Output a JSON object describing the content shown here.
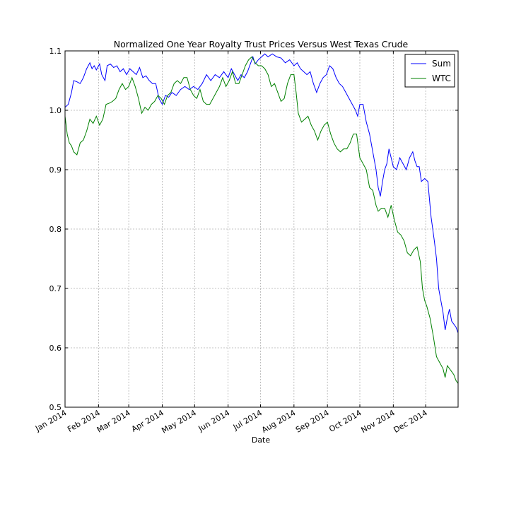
{
  "chart_data": {
    "type": "line",
    "title": "Normalized One Year Royalty Trust Prices Versus West Texas Crude",
    "xlabel": "Date",
    "ylabel": "",
    "x_range": [
      "2014-01-01",
      "2014-12-31"
    ],
    "x_ticks": [
      {
        "date": "2014-01-01",
        "label": "Jan 2014"
      },
      {
        "date": "2014-02-01",
        "label": "Feb 2014"
      },
      {
        "date": "2014-03-01",
        "label": "Mar 2014"
      },
      {
        "date": "2014-04-01",
        "label": "Apr 2014"
      },
      {
        "date": "2014-05-01",
        "label": "May 2014"
      },
      {
        "date": "2014-06-01",
        "label": "Jun 2014"
      },
      {
        "date": "2014-07-01",
        "label": "Jul 2014"
      },
      {
        "date": "2014-08-01",
        "label": "Aug 2014"
      },
      {
        "date": "2014-09-01",
        "label": "Sep 2014"
      },
      {
        "date": "2014-10-01",
        "label": "Oct 2014"
      },
      {
        "date": "2014-11-01",
        "label": "Nov 2014"
      },
      {
        "date": "2014-12-01",
        "label": "Dec 2014"
      }
    ],
    "ylim": [
      0.5,
      1.1
    ],
    "y_ticks": [
      {
        "value": 0.5,
        "label": "0.5"
      },
      {
        "value": 0.6,
        "label": "0.6"
      },
      {
        "value": 0.7,
        "label": "0.7"
      },
      {
        "value": 0.8,
        "label": "0.8"
      },
      {
        "value": 0.9,
        "label": "0.9"
      },
      {
        "value": 1.0,
        "label": "1.0"
      },
      {
        "value": 1.1,
        "label": "1.1"
      }
    ],
    "grid": true,
    "legend_position": "top-right",
    "series": [
      {
        "name": "Sum",
        "color": "#0000ff",
        "points": [
          [
            "2014-01-01",
            1.005
          ],
          [
            "2014-01-04",
            1.01
          ],
          [
            "2014-01-07",
            1.03
          ],
          [
            "2014-01-09",
            1.05
          ],
          [
            "2014-01-12",
            1.048
          ],
          [
            "2014-01-15",
            1.045
          ],
          [
            "2014-01-18",
            1.055
          ],
          [
            "2014-01-21",
            1.07
          ],
          [
            "2014-01-24",
            1.08
          ],
          [
            "2014-01-26",
            1.07
          ],
          [
            "2014-01-28",
            1.075
          ],
          [
            "2014-01-30",
            1.068
          ],
          [
            "2014-02-02",
            1.078
          ],
          [
            "2014-02-04",
            1.06
          ],
          [
            "2014-02-07",
            1.05
          ],
          [
            "2014-02-09",
            1.075
          ],
          [
            "2014-02-12",
            1.078
          ],
          [
            "2014-02-15",
            1.072
          ],
          [
            "2014-02-18",
            1.075
          ],
          [
            "2014-02-21",
            1.065
          ],
          [
            "2014-02-24",
            1.07
          ],
          [
            "2014-02-27",
            1.06
          ],
          [
            "2014-03-02",
            1.07
          ],
          [
            "2014-03-05",
            1.065
          ],
          [
            "2014-03-08",
            1.06
          ],
          [
            "2014-03-11",
            1.072
          ],
          [
            "2014-03-14",
            1.055
          ],
          [
            "2014-03-17",
            1.058
          ],
          [
            "2014-03-20",
            1.05
          ],
          [
            "2014-03-23",
            1.045
          ],
          [
            "2014-03-26",
            1.045
          ],
          [
            "2014-03-29",
            1.02
          ],
          [
            "2014-04-01",
            1.01
          ],
          [
            "2014-04-04",
            1.025
          ],
          [
            "2014-04-07",
            1.022
          ],
          [
            "2014-04-10",
            1.03
          ],
          [
            "2014-04-14",
            1.025
          ],
          [
            "2014-04-18",
            1.035
          ],
          [
            "2014-04-22",
            1.04
          ],
          [
            "2014-04-26",
            1.035
          ],
          [
            "2014-04-30",
            1.04
          ],
          [
            "2014-05-04",
            1.035
          ],
          [
            "2014-05-08",
            1.045
          ],
          [
            "2014-05-12",
            1.06
          ],
          [
            "2014-05-16",
            1.05
          ],
          [
            "2014-05-20",
            1.06
          ],
          [
            "2014-05-24",
            1.055
          ],
          [
            "2014-05-28",
            1.065
          ],
          [
            "2014-06-01",
            1.055
          ],
          [
            "2014-06-04",
            1.07
          ],
          [
            "2014-06-07",
            1.06
          ],
          [
            "2014-06-10",
            1.05
          ],
          [
            "2014-06-13",
            1.06
          ],
          [
            "2014-06-16",
            1.055
          ],
          [
            "2014-06-19",
            1.065
          ],
          [
            "2014-06-22",
            1.08
          ],
          [
            "2014-06-24",
            1.09
          ],
          [
            "2014-06-26",
            1.078
          ],
          [
            "2014-06-29",
            1.085
          ],
          [
            "2014-07-02",
            1.09
          ],
          [
            "2014-07-05",
            1.095
          ],
          [
            "2014-07-08",
            1.09
          ],
          [
            "2014-07-12",
            1.095
          ],
          [
            "2014-07-16",
            1.09
          ],
          [
            "2014-07-20",
            1.088
          ],
          [
            "2014-07-24",
            1.08
          ],
          [
            "2014-07-28",
            1.085
          ],
          [
            "2014-08-01",
            1.075
          ],
          [
            "2014-08-04",
            1.08
          ],
          [
            "2014-08-07",
            1.07
          ],
          [
            "2014-08-10",
            1.065
          ],
          [
            "2014-08-13",
            1.06
          ],
          [
            "2014-08-16",
            1.065
          ],
          [
            "2014-08-19",
            1.045
          ],
          [
            "2014-08-22",
            1.03
          ],
          [
            "2014-08-25",
            1.045
          ],
          [
            "2014-08-28",
            1.055
          ],
          [
            "2014-08-31",
            1.06
          ],
          [
            "2014-09-03",
            1.075
          ],
          [
            "2014-09-06",
            1.07
          ],
          [
            "2014-09-09",
            1.055
          ],
          [
            "2014-09-12",
            1.045
          ],
          [
            "2014-09-15",
            1.04
          ],
          [
            "2014-09-18",
            1.03
          ],
          [
            "2014-09-21",
            1.02
          ],
          [
            "2014-09-24",
            1.01
          ],
          [
            "2014-09-27",
            1.0
          ],
          [
            "2014-09-29",
            0.99
          ],
          [
            "2014-10-01",
            1.01
          ],
          [
            "2014-10-04",
            1.01
          ],
          [
            "2014-10-07",
            0.98
          ],
          [
            "2014-10-10",
            0.96
          ],
          [
            "2014-10-13",
            0.93
          ],
          [
            "2014-10-16",
            0.9
          ],
          [
            "2014-10-18",
            0.87
          ],
          [
            "2014-10-20",
            0.855
          ],
          [
            "2014-10-22",
            0.88
          ],
          [
            "2014-10-24",
            0.9
          ],
          [
            "2014-10-26",
            0.91
          ],
          [
            "2014-10-28",
            0.935
          ],
          [
            "2014-10-30",
            0.92
          ],
          [
            "2014-11-01",
            0.905
          ],
          [
            "2014-11-04",
            0.9
          ],
          [
            "2014-11-07",
            0.92
          ],
          [
            "2014-11-10",
            0.91
          ],
          [
            "2014-11-13",
            0.9
          ],
          [
            "2014-11-16",
            0.92
          ],
          [
            "2014-11-19",
            0.93
          ],
          [
            "2014-11-21",
            0.915
          ],
          [
            "2014-11-23",
            0.905
          ],
          [
            "2014-11-25",
            0.905
          ],
          [
            "2014-11-27",
            0.88
          ],
          [
            "2014-11-30",
            0.885
          ],
          [
            "2014-12-03",
            0.88
          ],
          [
            "2014-12-06",
            0.82
          ],
          [
            "2014-12-09",
            0.78
          ],
          [
            "2014-12-11",
            0.75
          ],
          [
            "2014-12-13",
            0.7
          ],
          [
            "2014-12-15",
            0.68
          ],
          [
            "2014-12-17",
            0.66
          ],
          [
            "2014-12-19",
            0.63
          ],
          [
            "2014-12-21",
            0.65
          ],
          [
            "2014-12-23",
            0.665
          ],
          [
            "2014-12-25",
            0.645
          ],
          [
            "2014-12-27",
            0.64
          ],
          [
            "2014-12-29",
            0.635
          ],
          [
            "2014-12-31",
            0.625
          ]
        ]
      },
      {
        "name": "WTC",
        "color": "#008000",
        "points": [
          [
            "2014-01-01",
            0.99
          ],
          [
            "2014-01-03",
            0.96
          ],
          [
            "2014-01-05",
            0.945
          ],
          [
            "2014-01-07",
            0.94
          ],
          [
            "2014-01-09",
            0.93
          ],
          [
            "2014-01-12",
            0.925
          ],
          [
            "2014-01-15",
            0.945
          ],
          [
            "2014-01-18",
            0.95
          ],
          [
            "2014-01-21",
            0.965
          ],
          [
            "2014-01-24",
            0.985
          ],
          [
            "2014-01-27",
            0.978
          ],
          [
            "2014-01-30",
            0.99
          ],
          [
            "2014-02-02",
            0.975
          ],
          [
            "2014-02-05",
            0.985
          ],
          [
            "2014-02-08",
            1.01
          ],
          [
            "2014-02-11",
            1.012
          ],
          [
            "2014-02-14",
            1.015
          ],
          [
            "2014-02-17",
            1.02
          ],
          [
            "2014-02-20",
            1.035
          ],
          [
            "2014-02-23",
            1.045
          ],
          [
            "2014-02-26",
            1.035
          ],
          [
            "2014-03-01",
            1.04
          ],
          [
            "2014-03-04",
            1.055
          ],
          [
            "2014-03-07",
            1.04
          ],
          [
            "2014-03-10",
            1.02
          ],
          [
            "2014-03-13",
            0.995
          ],
          [
            "2014-03-16",
            1.005
          ],
          [
            "2014-03-19",
            1.0
          ],
          [
            "2014-03-22",
            1.01
          ],
          [
            "2014-03-25",
            1.015
          ],
          [
            "2014-03-28",
            1.025
          ],
          [
            "2014-03-31",
            1.02
          ],
          [
            "2014-04-03",
            1.01
          ],
          [
            "2014-04-06",
            1.025
          ],
          [
            "2014-04-09",
            1.03
          ],
          [
            "2014-04-12",
            1.045
          ],
          [
            "2014-04-15",
            1.05
          ],
          [
            "2014-04-18",
            1.045
          ],
          [
            "2014-04-21",
            1.055
          ],
          [
            "2014-04-24",
            1.055
          ],
          [
            "2014-04-27",
            1.035
          ],
          [
            "2014-04-30",
            1.025
          ],
          [
            "2014-05-03",
            1.02
          ],
          [
            "2014-05-06",
            1.035
          ],
          [
            "2014-05-09",
            1.015
          ],
          [
            "2014-05-12",
            1.01
          ],
          [
            "2014-05-15",
            1.01
          ],
          [
            "2014-05-18",
            1.02
          ],
          [
            "2014-05-21",
            1.03
          ],
          [
            "2014-05-24",
            1.04
          ],
          [
            "2014-05-27",
            1.055
          ],
          [
            "2014-05-30",
            1.04
          ],
          [
            "2014-06-02",
            1.05
          ],
          [
            "2014-06-05",
            1.065
          ],
          [
            "2014-06-08",
            1.045
          ],
          [
            "2014-06-11",
            1.045
          ],
          [
            "2014-06-14",
            1.06
          ],
          [
            "2014-06-17",
            1.075
          ],
          [
            "2014-06-20",
            1.085
          ],
          [
            "2014-06-23",
            1.09
          ],
          [
            "2014-06-26",
            1.08
          ],
          [
            "2014-06-29",
            1.075
          ],
          [
            "2014-07-02",
            1.075
          ],
          [
            "2014-07-05",
            1.07
          ],
          [
            "2014-07-08",
            1.06
          ],
          [
            "2014-07-11",
            1.04
          ],
          [
            "2014-07-14",
            1.045
          ],
          [
            "2014-07-17",
            1.03
          ],
          [
            "2014-07-20",
            1.015
          ],
          [
            "2014-07-23",
            1.02
          ],
          [
            "2014-07-26",
            1.045
          ],
          [
            "2014-07-29",
            1.06
          ],
          [
            "2014-08-01",
            1.06
          ],
          [
            "2014-08-03",
            1.03
          ],
          [
            "2014-08-05",
            0.995
          ],
          [
            "2014-08-08",
            0.98
          ],
          [
            "2014-08-11",
            0.985
          ],
          [
            "2014-08-14",
            0.99
          ],
          [
            "2014-08-17",
            0.975
          ],
          [
            "2014-08-20",
            0.965
          ],
          [
            "2014-08-23",
            0.95
          ],
          [
            "2014-08-26",
            0.965
          ],
          [
            "2014-08-29",
            0.975
          ],
          [
            "2014-09-01",
            0.98
          ],
          [
            "2014-09-04",
            0.96
          ],
          [
            "2014-09-07",
            0.945
          ],
          [
            "2014-09-10",
            0.935
          ],
          [
            "2014-09-13",
            0.93
          ],
          [
            "2014-09-16",
            0.935
          ],
          [
            "2014-09-19",
            0.935
          ],
          [
            "2014-09-22",
            0.945
          ],
          [
            "2014-09-25",
            0.96
          ],
          [
            "2014-09-28",
            0.96
          ],
          [
            "2014-10-01",
            0.92
          ],
          [
            "2014-10-04",
            0.91
          ],
          [
            "2014-10-07",
            0.9
          ],
          [
            "2014-10-10",
            0.87
          ],
          [
            "2014-10-13",
            0.865
          ],
          [
            "2014-10-16",
            0.84
          ],
          [
            "2014-10-18",
            0.83
          ],
          [
            "2014-10-21",
            0.835
          ],
          [
            "2014-10-24",
            0.835
          ],
          [
            "2014-10-27",
            0.82
          ],
          [
            "2014-10-30",
            0.84
          ],
          [
            "2014-11-02",
            0.815
          ],
          [
            "2014-11-05",
            0.795
          ],
          [
            "2014-11-08",
            0.79
          ],
          [
            "2014-11-11",
            0.78
          ],
          [
            "2014-11-14",
            0.76
          ],
          [
            "2014-11-17",
            0.755
          ],
          [
            "2014-11-20",
            0.765
          ],
          [
            "2014-11-23",
            0.77
          ],
          [
            "2014-11-26",
            0.745
          ],
          [
            "2014-11-28",
            0.7
          ],
          [
            "2014-11-30",
            0.68
          ],
          [
            "2014-12-02",
            0.67
          ],
          [
            "2014-12-05",
            0.65
          ],
          [
            "2014-12-08",
            0.62
          ],
          [
            "2014-12-11",
            0.585
          ],
          [
            "2014-12-14",
            0.575
          ],
          [
            "2014-12-17",
            0.565
          ],
          [
            "2014-12-19",
            0.55
          ],
          [
            "2014-12-21",
            0.57
          ],
          [
            "2014-12-23",
            0.565
          ],
          [
            "2014-12-25",
            0.56
          ],
          [
            "2014-12-27",
            0.555
          ],
          [
            "2014-12-29",
            0.545
          ],
          [
            "2014-12-31",
            0.54
          ]
        ]
      }
    ]
  }
}
